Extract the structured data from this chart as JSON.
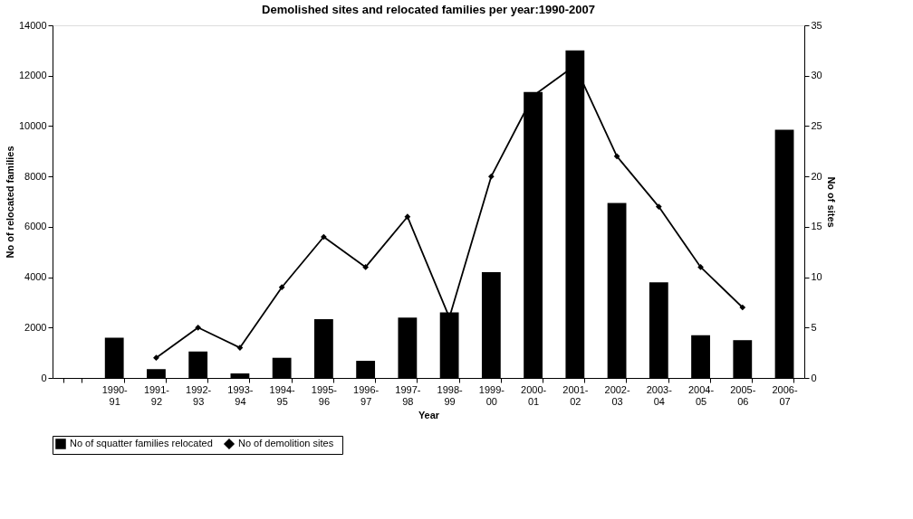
{
  "chart_data": {
    "type": "bar",
    "title": "Demolished sites and relocated families per year:1990-2007",
    "xlabel": "Year",
    "ylabel": "No of relocated families",
    "y2label": "No of sites",
    "categories": [
      null,
      "1990-91",
      "1991-92",
      "1992-93",
      "1993-94",
      "1994-95",
      "1995-96",
      "1996-97",
      "1997-98",
      "1998-99",
      "1999-00",
      "2000-01",
      "2001-02",
      "2002-03",
      "2003-04",
      "2004-05",
      "2005-06",
      "2006-07"
    ],
    "series": [
      {
        "name": "No of squatter families relocated",
        "color": "#000000",
        "values": [
          null,
          1600,
          350,
          1050,
          180,
          800,
          2330,
          680,
          2400,
          2600,
          4200,
          11350,
          13000,
          6950,
          3800,
          1700,
          1500,
          9850
        ]
      },
      {
        "name": "No of  demolition  sites",
        "color": "#000000",
        "type": "line",
        "axis": "y2",
        "marker": "diamond",
        "values": [
          null,
          null,
          2,
          5,
          3,
          9,
          14,
          11,
          16,
          6,
          20,
          28,
          31,
          22,
          17,
          11,
          7,
          null
        ]
      }
    ],
    "ylim": [
      0,
      14000
    ],
    "yticks": [
      0,
      2000,
      4000,
      6000,
      8000,
      10000,
      12000,
      14000
    ],
    "y2lim": [
      0,
      35
    ],
    "y2ticks": [
      0,
      5,
      10,
      15,
      20,
      25,
      30,
      35
    ],
    "grid": false,
    "legend": "bottom"
  }
}
